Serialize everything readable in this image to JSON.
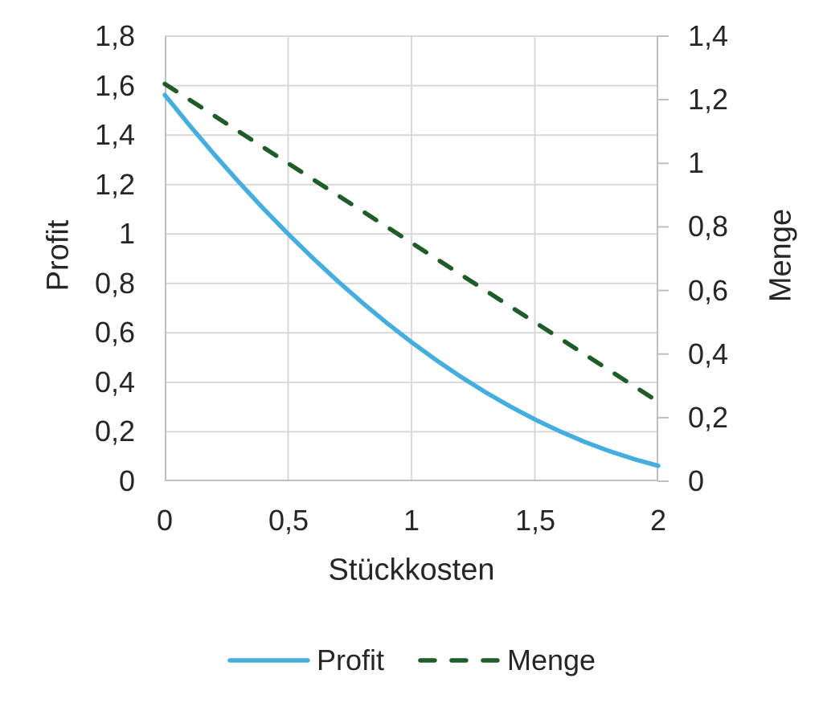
{
  "figure": {
    "background": "#ffffff",
    "text_color": "#262626",
    "grid_color": "#d9d9d9",
    "axis_color": "#bfbfbf"
  },
  "chart_data": {
    "type": "line",
    "xlabel": "Stückkosten",
    "x_axis": {
      "min": 0,
      "max": 2,
      "tick_values": [
        0,
        0.5,
        1,
        1.5,
        2
      ],
      "tick_labels": [
        "0",
        "0,5",
        "1",
        "1,5",
        "2"
      ]
    },
    "left_axis": {
      "title": "Profit",
      "min": 0,
      "max": 1.8,
      "tick_step": 0.2,
      "tick_values": [
        0,
        0.2,
        0.4,
        0.6,
        0.8,
        1,
        1.2,
        1.4,
        1.6,
        1.8
      ],
      "tick_labels": [
        "0",
        "0,2",
        "0,4",
        "0,6",
        "0,8",
        "1",
        "1,2",
        "1,4",
        "1,6",
        "1,8"
      ]
    },
    "right_axis": {
      "title": "Menge",
      "min": 0,
      "max": 1.4,
      "tick_step": 0.2,
      "tick_values": [
        0,
        0.2,
        0.4,
        0.6,
        0.8,
        1,
        1.2,
        1.4
      ],
      "tick_labels": [
        "0",
        "0,2",
        "0,4",
        "0,6",
        "0,8",
        "1",
        "1,2",
        "1,4"
      ]
    },
    "x": [
      0,
      0.1,
      0.2,
      0.3,
      0.4,
      0.5,
      0.6,
      0.7,
      0.8,
      0.9,
      1,
      1.1,
      1.2,
      1.3,
      1.4,
      1.5,
      1.6,
      1.7,
      1.8,
      1.9,
      2
    ],
    "series": [
      {
        "name": "Profit",
        "axis": "left",
        "color": "#46aede",
        "style": "solid",
        "values": [
          1.5625,
          1.44,
          1.3225,
          1.21,
          1.1025,
          1.0,
          0.9025,
          0.81,
          0.7225,
          0.64,
          0.5625,
          0.49,
          0.4225,
          0.36,
          0.3025,
          0.25,
          0.2025,
          0.16,
          0.1225,
          0.09,
          0.0625
        ]
      },
      {
        "name": "Menge",
        "axis": "right",
        "color": "#1e5c28",
        "style": "dashed",
        "values": [
          1.25,
          1.2,
          1.15,
          1.1,
          1.05,
          1.0,
          0.95,
          0.9,
          0.85,
          0.8,
          0.75,
          0.7,
          0.65,
          0.6,
          0.55,
          0.5,
          0.45,
          0.4,
          0.35,
          0.3,
          0.25
        ]
      }
    ],
    "legend": {
      "position": "bottom",
      "entries": [
        {
          "label": "Profit",
          "style": "solid",
          "color": "#46aede"
        },
        {
          "label": "Menge",
          "style": "dashed",
          "color": "#1e5c28"
        }
      ]
    }
  }
}
